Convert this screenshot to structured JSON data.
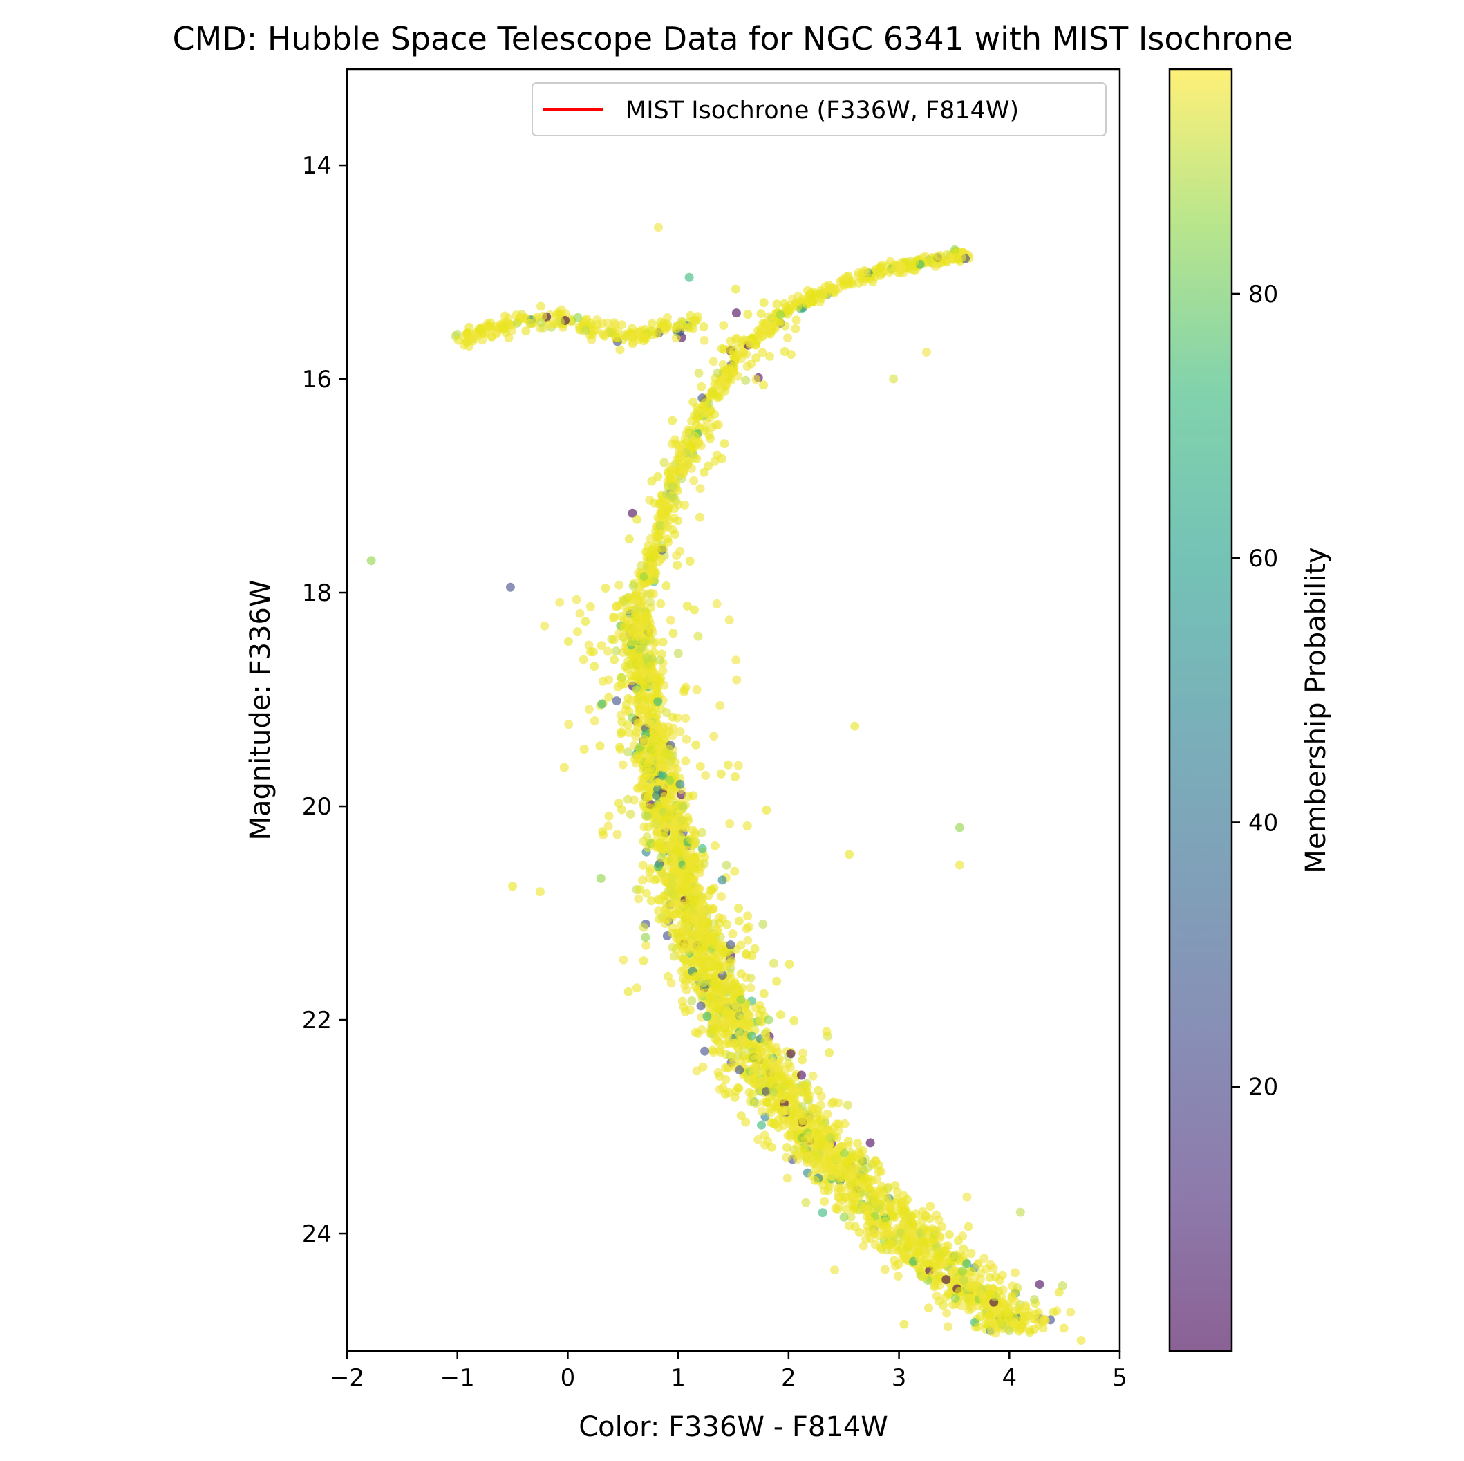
{
  "chart_data": {
    "type": "scatter",
    "title": "CMD: Hubble Space Telescope Data for NGC 6341 with MIST Isochrone",
    "xlabel": "Color: F336W - F814W",
    "ylabel": "Magnitude: F336W",
    "xlim": [
      -2,
      5
    ],
    "ylim": [
      25.1,
      13.1
    ],
    "y_inverted": true,
    "x_ticks": [
      "−2",
      "−1",
      "0",
      "1",
      "2",
      "3",
      "4",
      "5"
    ],
    "x_tick_values": [
      -2,
      -1,
      0,
      1,
      2,
      3,
      4,
      5
    ],
    "y_ticks": [
      "14",
      "16",
      "18",
      "20",
      "22",
      "24"
    ],
    "y_tick_values": [
      14,
      16,
      18,
      20,
      22,
      24
    ],
    "legend": {
      "placement": "top-right",
      "entries": [
        {
          "label": "MIST Isochrone (F336W, F814W)",
          "color": "#ff0000",
          "marker": "line"
        }
      ]
    },
    "colorbar": {
      "label": "Membership Probability",
      "colormap": "viridis",
      "range": [
        0,
        97
      ],
      "ticks": [
        "20",
        "40",
        "60",
        "80"
      ],
      "tick_values": [
        20,
        40,
        60,
        80
      ]
    },
    "marker_color_note_hex": {
      "high": "#fde725",
      "mid": "#35b779",
      "low": "#440154"
    },
    "point_opacity": 0.6,
    "sequences": {
      "main_sequence_ridge": [
        [
          0.62,
          18.0
        ],
        [
          0.65,
          18.5
        ],
        [
          0.7,
          19.0
        ],
        [
          0.78,
          19.5
        ],
        [
          0.88,
          20.0
        ],
        [
          1.0,
          20.5
        ],
        [
          1.12,
          21.0
        ],
        [
          1.28,
          21.5
        ],
        [
          1.5,
          22.0
        ],
        [
          1.8,
          22.5
        ],
        [
          2.15,
          23.0
        ],
        [
          2.55,
          23.5
        ],
        [
          3.05,
          24.0
        ],
        [
          3.6,
          24.5
        ],
        [
          4.1,
          24.9
        ]
      ],
      "red_giant_branch": [
        [
          0.7,
          17.9
        ],
        [
          0.82,
          17.5
        ],
        [
          0.95,
          17.0
        ],
        [
          1.1,
          16.6
        ],
        [
          1.35,
          16.1
        ],
        [
          1.6,
          15.7
        ],
        [
          2.0,
          15.35
        ],
        [
          2.5,
          15.1
        ],
        [
          3.0,
          14.95
        ],
        [
          3.5,
          14.85
        ],
        [
          3.6,
          14.85
        ]
      ],
      "horizontal_branch": [
        [
          -1.0,
          15.65
        ],
        [
          -0.7,
          15.55
        ],
        [
          -0.4,
          15.45
        ],
        [
          -0.1,
          15.45
        ],
        [
          0.3,
          15.55
        ],
        [
          0.6,
          15.6
        ],
        [
          0.85,
          15.55
        ],
        [
          1.2,
          15.45
        ]
      ]
    },
    "notable_points": [
      [
        0.82,
        14.58
      ],
      [
        1.1,
        15.05
      ],
      [
        2.95,
        16.0
      ],
      [
        -1.78,
        17.7
      ],
      [
        -0.52,
        17.95
      ],
      [
        3.55,
        20.2
      ],
      [
        3.55,
        20.55
      ],
      [
        2.55,
        20.45
      ],
      [
        2.6,
        19.25
      ],
      [
        -0.5,
        20.75
      ],
      [
        -0.25,
        20.8
      ],
      [
        4.45,
        24.55
      ],
      [
        4.1,
        23.8
      ],
      [
        4.65,
        25.0
      ],
      [
        3.25,
        15.75
      ]
    ]
  }
}
